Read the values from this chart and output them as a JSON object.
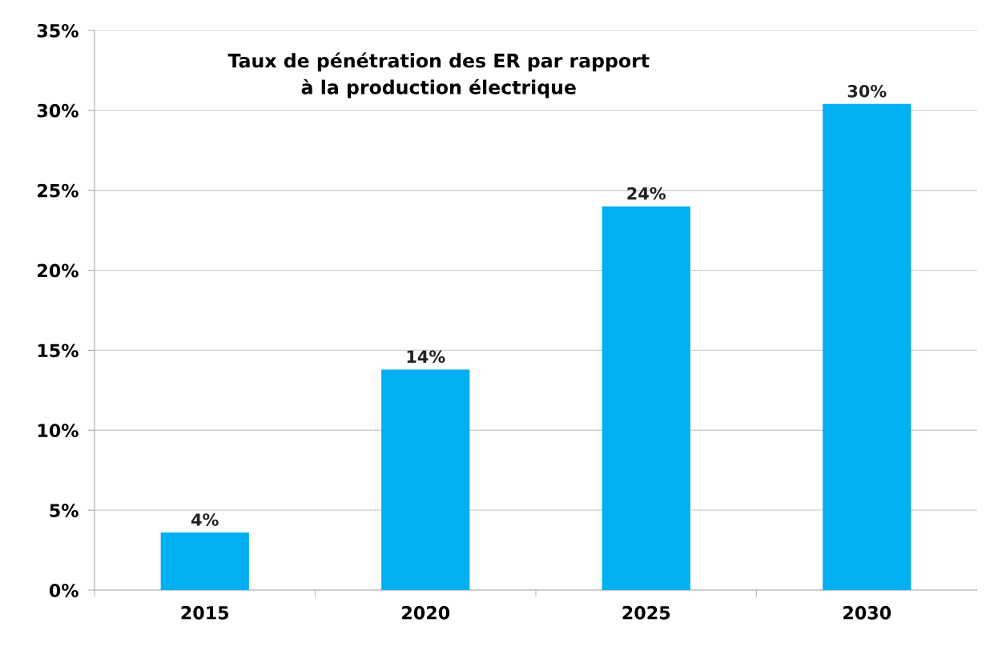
{
  "chart_data": {
    "type": "bar",
    "title": "Taux de pénétration des ER par rapport\nà la production électrique",
    "categories": [
      "2015",
      "2020",
      "2025",
      "2030"
    ],
    "values": [
      3.6,
      13.8,
      24.0,
      30.4
    ],
    "value_labels": [
      "4%",
      "14%",
      "24%",
      "30%"
    ],
    "color": "#00b0f0",
    "ylim": [
      0,
      35
    ],
    "yticks": [
      {
        "value": 0,
        "label": "0%"
      },
      {
        "value": 5,
        "label": "5%"
      },
      {
        "value": 10,
        "label": "10%"
      },
      {
        "value": 15,
        "label": "15%"
      },
      {
        "value": 20,
        "label": "20%"
      },
      {
        "value": 25,
        "label": "25%"
      },
      {
        "value": 30,
        "label": "30%"
      },
      {
        "value": 35,
        "label": "35%"
      }
    ],
    "grid": "y",
    "legend": false
  }
}
